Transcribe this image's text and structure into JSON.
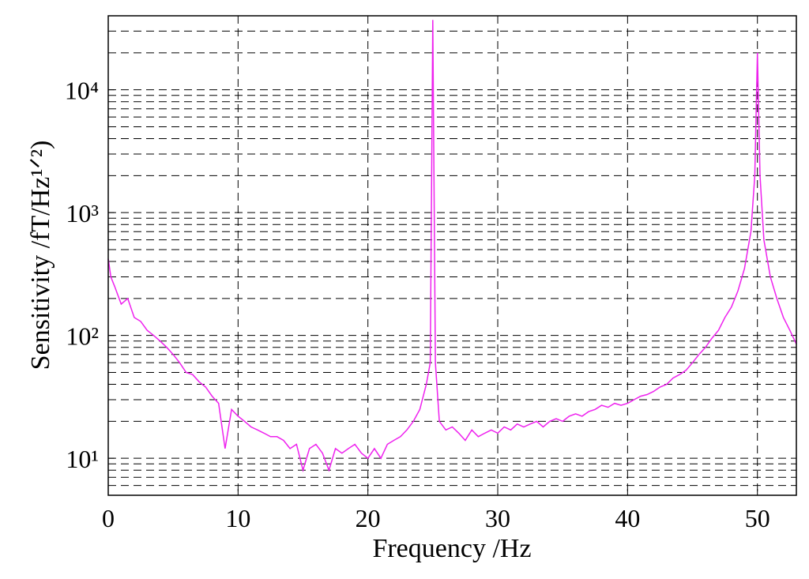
{
  "chart_data": {
    "type": "line",
    "xlabel": "Frequency /Hz",
    "ylabel": "Sensitivity /fT/Hz¹ᐟ²)",
    "xlim": [
      0,
      53
    ],
    "xticks": [
      0,
      10,
      20,
      30,
      40,
      50
    ],
    "ylim": [
      5,
      40000
    ],
    "ylog": true,
    "yticks": [
      {
        "value": 10,
        "label": "10¹"
      },
      {
        "value": 100,
        "label": "10²"
      },
      {
        "value": 1000,
        "label": "10³"
      },
      {
        "value": 10000,
        "label": "10⁴"
      }
    ],
    "yminorticks": [
      5,
      6,
      7,
      8,
      9,
      20,
      30,
      40,
      50,
      60,
      70,
      80,
      90,
      200,
      300,
      400,
      500,
      600,
      700,
      800,
      900,
      2000,
      3000,
      4000,
      5000,
      6000,
      7000,
      8000,
      9000,
      20000,
      30000,
      40000
    ],
    "grid": true,
    "color": "#ee22ee",
    "x": [
      0,
      0.2,
      0.5,
      1,
      1.5,
      2,
      2.5,
      3,
      3.5,
      4,
      4.5,
      5,
      5.5,
      6,
      6.5,
      7,
      7.5,
      8,
      8.5,
      9,
      9.5,
      10,
      10.5,
      11,
      11.5,
      12,
      12.5,
      13,
      13.5,
      14,
      14.5,
      15,
      15.5,
      16,
      16.5,
      17,
      17.5,
      18,
      18.5,
      19,
      19.5,
      20,
      20.5,
      21,
      21.5,
      22,
      22.5,
      23,
      23.5,
      24,
      24.5,
      24.8,
      25,
      25.2,
      25.5,
      26,
      26.5,
      27,
      27.5,
      28,
      28.5,
      29,
      29.5,
      30,
      30.5,
      31,
      31.5,
      32,
      32.5,
      33,
      33.5,
      34,
      34.5,
      35,
      35.5,
      36,
      36.5,
      37,
      37.5,
      38,
      38.5,
      39,
      39.5,
      40,
      40.5,
      41,
      41.5,
      42,
      42.5,
      43,
      43.5,
      44,
      44.5,
      45,
      45.5,
      46,
      46.5,
      47,
      47.5,
      48,
      48.5,
      49,
      49.5,
      49.8,
      50,
      50.2,
      50.5,
      51,
      51.5,
      52,
      52.5,
      53
    ],
    "values": [
      420,
      300,
      250,
      180,
      200,
      140,
      130,
      110,
      100,
      90,
      80,
      70,
      60,
      50,
      48,
      42,
      38,
      32,
      28,
      12,
      25,
      22,
      20,
      18,
      17,
      16,
      15,
      15,
      14,
      12,
      13,
      8,
      12,
      13,
      11,
      8,
      12,
      11,
      12,
      13,
      11,
      10,
      12,
      10,
      13,
      14,
      15,
      17,
      20,
      25,
      40,
      60,
      37000,
      60,
      20,
      17,
      18,
      16,
      14,
      17,
      15,
      16,
      17,
      16,
      18,
      17,
      19,
      18,
      19,
      20,
      18,
      20,
      21,
      20,
      22,
      23,
      22,
      24,
      25,
      27,
      26,
      28,
      27,
      28,
      30,
      32,
      33,
      35,
      38,
      40,
      45,
      48,
      52,
      60,
      70,
      80,
      95,
      110,
      140,
      170,
      230,
      350,
      700,
      2000,
      20000,
      2000,
      600,
      300,
      200,
      140,
      110,
      85
    ]
  }
}
